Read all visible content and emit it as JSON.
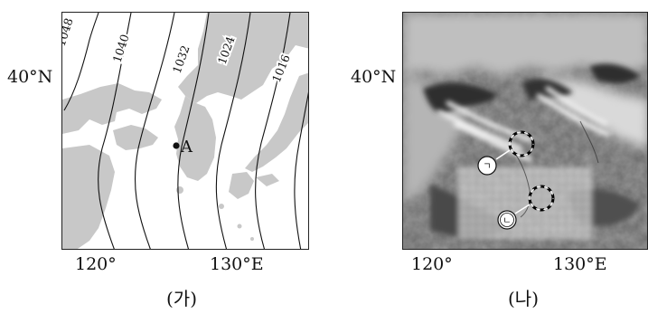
{
  "panel_left": {
    "caption": "(가)",
    "lat_label": "40°N",
    "lon_labels": [
      "120°",
      "130°E"
    ],
    "isobars": [
      "1048",
      "1040",
      "1032",
      "1024",
      "1016"
    ],
    "point_label": "A",
    "colors": {
      "land": "#c8c8c8",
      "sea": "#ffffff",
      "isobar": "#111111"
    }
  },
  "panel_right": {
    "caption": "(나)",
    "lat_label": "40°N",
    "lon_labels": [
      "120°",
      "130°E"
    ],
    "markers": [
      "ㄱ",
      "ㄴ"
    ]
  }
}
